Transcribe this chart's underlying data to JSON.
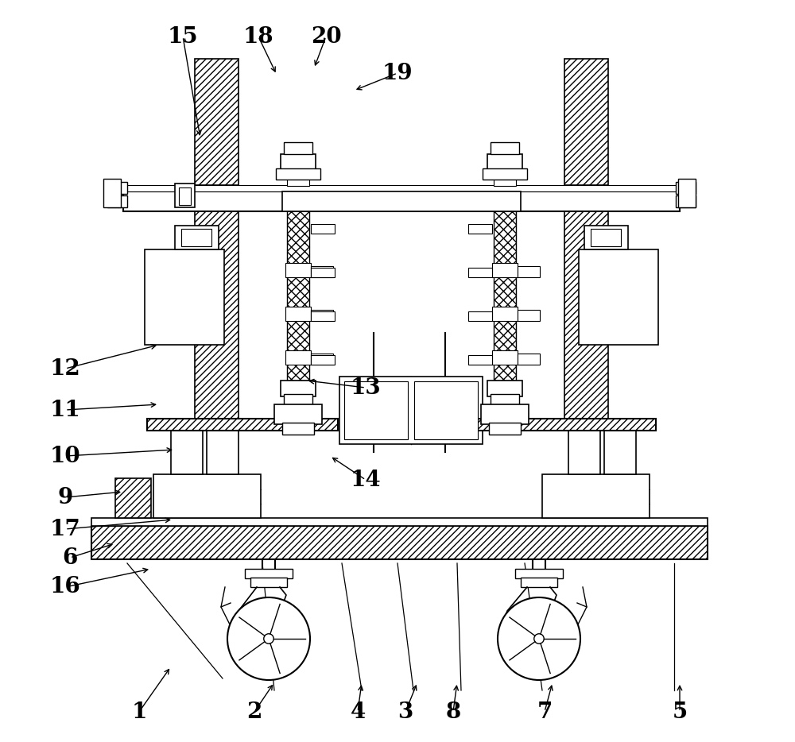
{
  "bg_color": "#ffffff",
  "figsize": [
    10.0,
    9.34
  ],
  "dpi": 100,
  "label_positions": {
    "1": [
      175,
      38,
      215,
      95
    ],
    "2": [
      320,
      38,
      345,
      75
    ],
    "3": [
      510,
      38,
      525,
      75
    ],
    "4": [
      450,
      38,
      455,
      75
    ],
    "5": [
      855,
      38,
      855,
      75
    ],
    "6": [
      88,
      232,
      145,
      250
    ],
    "7": [
      685,
      38,
      695,
      75
    ],
    "8": [
      570,
      38,
      575,
      75
    ],
    "9": [
      82,
      308,
      155,
      315
    ],
    "10": [
      82,
      360,
      220,
      368
    ],
    "11": [
      82,
      418,
      200,
      425
    ],
    "12": [
      82,
      470,
      200,
      500
    ],
    "13": [
      460,
      446,
      385,
      455
    ],
    "14": [
      460,
      330,
      415,
      360
    ],
    "15": [
      230,
      888,
      252,
      760
    ],
    "16": [
      82,
      195,
      190,
      218
    ],
    "17": [
      82,
      268,
      218,
      280
    ],
    "18": [
      325,
      888,
      348,
      840
    ],
    "19": [
      500,
      842,
      445,
      820
    ],
    "20": [
      410,
      888,
      395,
      848
    ]
  }
}
